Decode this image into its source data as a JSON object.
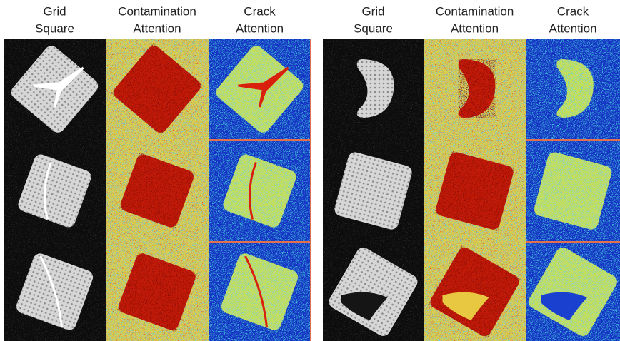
{
  "panels": [
    {
      "headers": [
        {
          "lines": [
            "Grid",
            "Square"
          ]
        },
        {
          "lines": [
            "Contamination",
            "Attention"
          ]
        },
        {
          "lines": [
            "Crack",
            "Attention"
          ]
        }
      ]
    },
    {
      "headers": [
        {
          "lines": [
            "Grid",
            "Square"
          ]
        },
        {
          "lines": [
            "Contamination",
            "Attention"
          ]
        },
        {
          "lines": [
            "Crack",
            "Attention"
          ]
        }
      ]
    }
  ]
}
